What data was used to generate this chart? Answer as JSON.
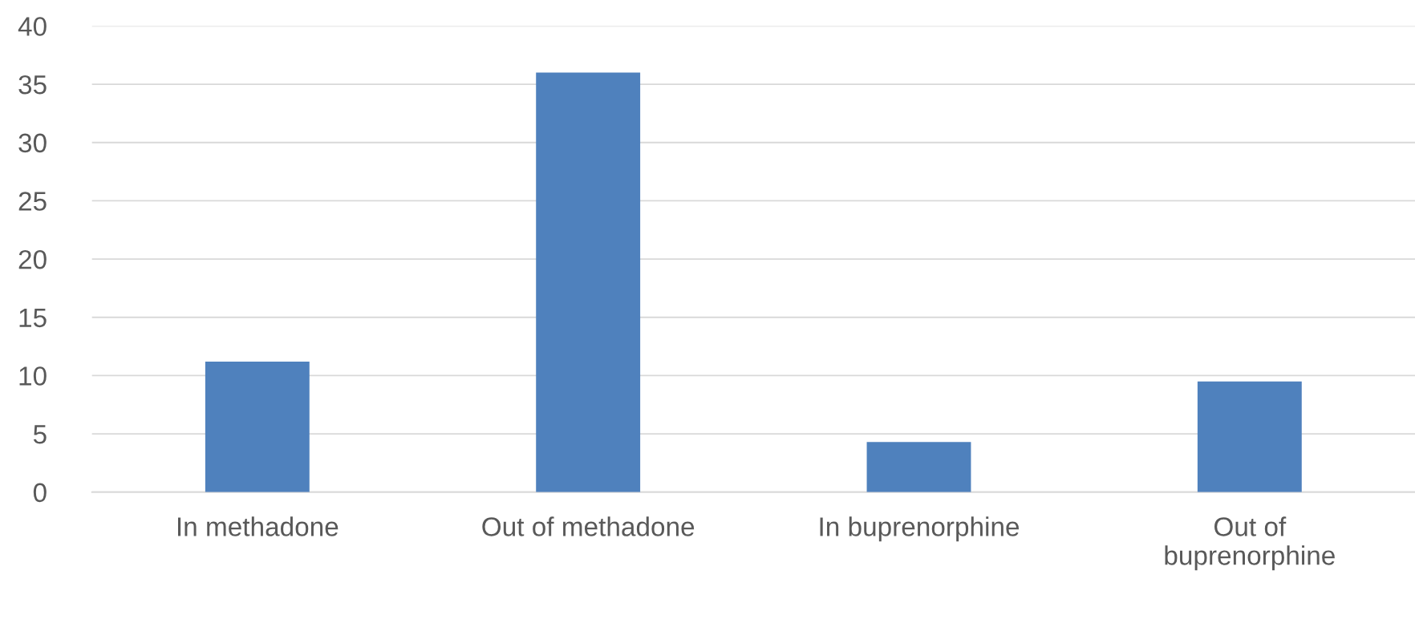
{
  "chart_data": {
    "type": "bar",
    "categories": [
      "In methadone",
      "Out of methadone",
      "In buprenorphine",
      "Out of\nbuprenorphine"
    ],
    "values": [
      11.2,
      36,
      4.3,
      9.5
    ],
    "color": "#4f81bd",
    "ylim": [
      0,
      40
    ],
    "yticks": [
      0,
      5,
      10,
      15,
      20,
      25,
      30,
      35,
      40
    ],
    "grid": "y",
    "legend": false
  }
}
